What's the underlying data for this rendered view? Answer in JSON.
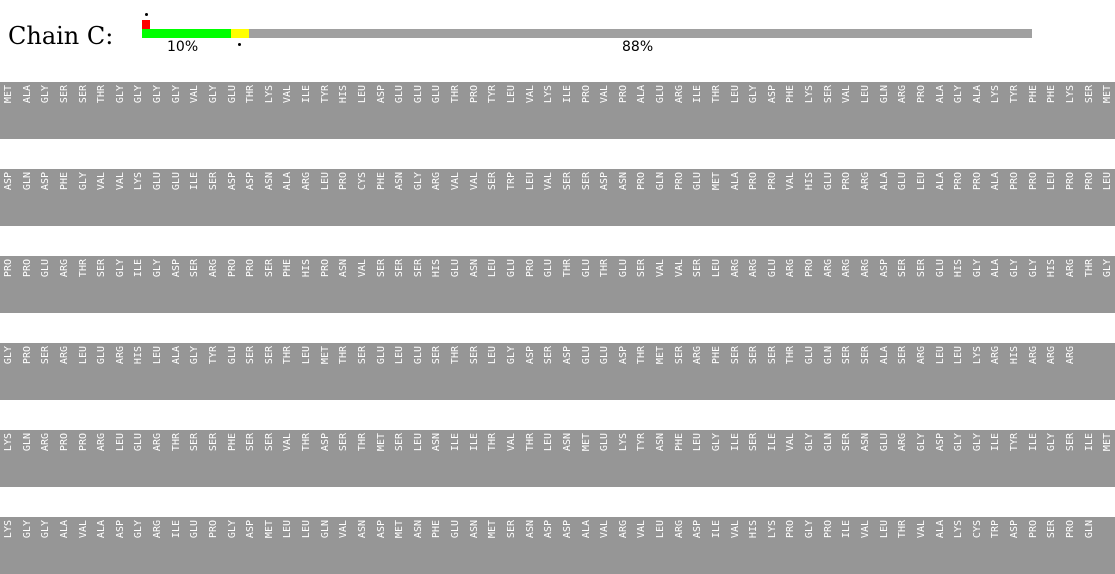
{
  "chain": {
    "label": "Chain C:",
    "segments": [
      {
        "color": "#ff0000",
        "fraction": 0.009
      },
      {
        "color": "#00ff00",
        "fraction": 0.1
      },
      {
        "color": "#ffff00",
        "fraction": 0.02
      },
      {
        "color": "#a0a0a0",
        "fraction": 0.88
      }
    ],
    "pct_green": "10%",
    "pct_gray": "88%"
  },
  "sequence_rows": [
    [
      "MET",
      "ALA",
      "GLY",
      "SER",
      "SER",
      "THR",
      "GLY",
      "GLY",
      "GLY",
      "GLY",
      "VAL",
      "GLY",
      "GLU",
      "THR",
      "LYS",
      "VAL",
      "ILE",
      "TYR",
      "HIS",
      "LEU",
      "ASP",
      "GLU",
      "GLU",
      "GLU",
      "THR",
      "PRO",
      "TYR",
      "LEU",
      "VAL",
      "LYS",
      "ILE",
      "PRO",
      "VAL",
      "PRO",
      "ALA",
      "GLU",
      "ARG",
      "ILE",
      "THR",
      "LEU",
      "GLY",
      "ASP",
      "PHE",
      "LYS",
      "SER",
      "VAL",
      "LEU",
      "GLN",
      "ARG",
      "PRO",
      "ALA",
      "GLY",
      "ALA",
      "LYS",
      "TYR",
      "PHE",
      "PHE",
      "LYS",
      "SER",
      "MET"
    ],
    [
      "ASP",
      "GLN",
      "ASP",
      "PHE",
      "GLY",
      "VAL",
      "VAL",
      "LYS",
      "GLU",
      "GLU",
      "ILE",
      "SER",
      "ASP",
      "ASP",
      "ASN",
      "ALA",
      "ARG",
      "LEU",
      "PRO",
      "CYS",
      "PHE",
      "ASN",
      "GLY",
      "ARG",
      "VAL",
      "VAL",
      "SER",
      "TRP",
      "LEU",
      "VAL",
      "SER",
      "SER",
      "ASP",
      "ASN",
      "PRO",
      "GLN",
      "PRO",
      "GLU",
      "MET",
      "ALA",
      "PRO",
      "PRO",
      "VAL",
      "HIS",
      "GLU",
      "PRO",
      "ARG",
      "ALA",
      "GLU",
      "LEU",
      "ALA",
      "PRO",
      "PRO",
      "ALA",
      "PRO",
      "PRO",
      "LEU",
      "PRO",
      "PRO",
      "LEU"
    ],
    [
      "PRO",
      "PRO",
      "GLU",
      "ARG",
      "THR",
      "SER",
      "GLY",
      "ILE",
      "GLY",
      "ASP",
      "SER",
      "ARG",
      "PRO",
      "PRO",
      "SER",
      "PHE",
      "HIS",
      "PRO",
      "ASN",
      "VAL",
      "SER",
      "SER",
      "SER",
      "HIS",
      "GLU",
      "ASN",
      "LEU",
      "GLU",
      "PRO",
      "GLU",
      "THR",
      "GLU",
      "THR",
      "GLU",
      "SER",
      "VAL",
      "VAL",
      "SER",
      "LEU",
      "ARG",
      "ARG",
      "GLU",
      "ARG",
      "PRO",
      "ARG",
      "ARG",
      "ARG",
      "ASP",
      "SER",
      "SER",
      "GLU",
      "HIS",
      "GLY",
      "ALA",
      "GLY",
      "GLY",
      "HIS",
      "ARG",
      "THR",
      "GLY"
    ],
    [
      "GLY",
      "PRO",
      "SER",
      "ARG",
      "LEU",
      "GLU",
      "ARG",
      "HIS",
      "LEU",
      "ALA",
      "GLY",
      "TYR",
      "GLU",
      "SER",
      "SER",
      "THR",
      "LEU",
      "MET",
      "THR",
      "SER",
      "GLU",
      "LEU",
      "GLU",
      "SER",
      "THR",
      "SER",
      "LEU",
      "GLY",
      "ASP",
      "SER",
      "ASP",
      "GLU",
      "GLU",
      "ASP",
      "THR",
      "MET",
      "SER",
      "ARG",
      "PHE",
      "SER",
      "SER",
      "SER",
      "THR",
      "GLU",
      "GLN",
      "SER",
      "SER",
      "ALA",
      "SER",
      "ARG",
      "LEU",
      "LEU",
      "LYS",
      "ARG",
      "HIS",
      "ARG",
      "ARG",
      "ARG"
    ],
    [
      "LYS",
      "GLN",
      "ARG",
      "PRO",
      "PRO",
      "ARG",
      "LEU",
      "GLU",
      "ARG",
      "THR",
      "SER",
      "SER",
      "PHE",
      "SER",
      "SER",
      "VAL",
      "THR",
      "ASP",
      "SER",
      "THR",
      "MET",
      "SER",
      "LEU",
      "ASN",
      "ILE",
      "ILE",
      "THR",
      "VAL",
      "THR",
      "LEU",
      "ASN",
      "MET",
      "GLU",
      "LYS",
      "TYR",
      "ASN",
      "PHE",
      "LEU",
      "GLY",
      "ILE",
      "SER",
      "ILE",
      "VAL",
      "GLY",
      "GLN",
      "SER",
      "ASN",
      "GLU",
      "ARG",
      "GLY",
      "ASP",
      "GLY",
      "GLY",
      "ILE",
      "TYR",
      "ILE",
      "GLY",
      "SER",
      "ILE",
      "MET"
    ],
    [
      "LYS",
      "GLY",
      "GLY",
      "ALA",
      "VAL",
      "ALA",
      "ASP",
      "GLY",
      "ARG",
      "ILE",
      "GLU",
      "PRO",
      "GLY",
      "ASP",
      "MET",
      "LEU",
      "LEU",
      "GLN",
      "VAL",
      "ASN",
      "ASP",
      "MET",
      "ASN",
      "PHE",
      "GLU",
      "ASN",
      "MET",
      "SER",
      "ASN",
      "ASP",
      "ASP",
      "ALA",
      "VAL",
      "ARG",
      "VAL",
      "LEU",
      "ARG",
      "ASP",
      "ILE",
      "VAL",
      "HIS",
      "LYS",
      "PRO",
      "GLY",
      "PRO",
      "ILE",
      "VAL",
      "LEU",
      "THR",
      "VAL",
      "ALA",
      "LYS",
      "CYS",
      "TRP",
      "ASP",
      "PRO",
      "SER",
      "PRO",
      "GLN"
    ]
  ]
}
